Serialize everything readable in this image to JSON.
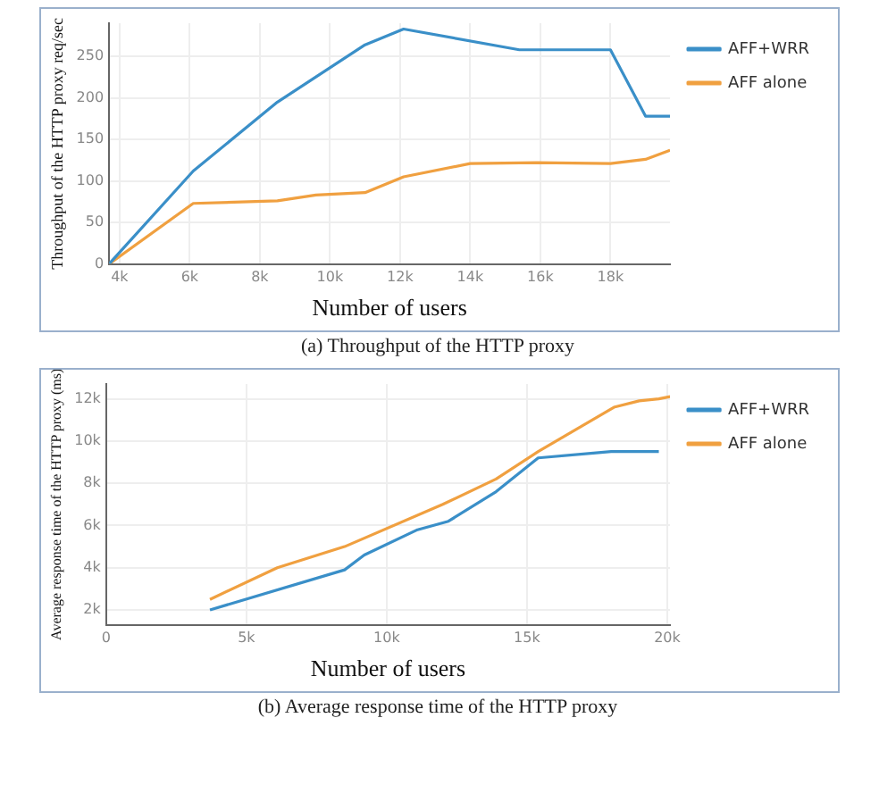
{
  "chart_data": [
    {
      "type": "line",
      "title": "(a)  Throughput of the HTTP proxy",
      "xlabel": "Number of users",
      "ylabel": "Throughput of the HTTP proxy req/sec",
      "xlim": [
        3700,
        19700
      ],
      "xticks": [
        {
          "value": 4000,
          "label": "4k"
        },
        {
          "value": 6000,
          "label": "6k"
        },
        {
          "value": 8000,
          "label": "8k"
        },
        {
          "value": 10000,
          "label": "10k"
        },
        {
          "value": 12000,
          "label": "12k"
        },
        {
          "value": 14000,
          "label": "14k"
        },
        {
          "value": 16000,
          "label": "16k"
        },
        {
          "value": 18000,
          "label": "18k"
        }
      ],
      "ylim": [
        0,
        290
      ],
      "yticks": [
        0,
        50,
        100,
        150,
        200,
        250
      ],
      "grid": true,
      "legend": "top right",
      "marker": "none",
      "line_style": "solid",
      "series": [
        {
          "name": "AFF+WRR",
          "color": "#3a8fc8",
          "x": [
            3700,
            6100,
            8500,
            11000,
            12100,
            15400,
            18000,
            19000,
            19700
          ],
          "values": [
            0,
            112,
            195,
            264,
            283,
            258,
            258,
            178,
            178
          ]
        },
        {
          "name": "AFF alone",
          "color": "#f0a040",
          "x": [
            3700,
            6100,
            8500,
            9600,
            11000,
            12100,
            14000,
            15900,
            18000,
            19000,
            19700
          ],
          "values": [
            0,
            73,
            76,
            83,
            86,
            105,
            121,
            122,
            121,
            126,
            137
          ]
        }
      ]
    },
    {
      "type": "line",
      "title": "(b) Average response time of the HTTP proxy",
      "xlabel": "Number of users",
      "ylabel": "Average response time of the HTTP proxy (ms)",
      "xlim": [
        0,
        20100
      ],
      "xticks": [
        0,
        {
          "value": 5000,
          "label": "5k"
        },
        {
          "value": 10000,
          "label": "10k"
        },
        {
          "value": 15000,
          "label": "15k"
        },
        {
          "value": 20000,
          "label": "20k"
        }
      ],
      "ylim": [
        1300,
        12700
      ],
      "yticks": [
        {
          "value": 2000,
          "label": "2k"
        },
        {
          "value": 4000,
          "label": "4k"
        },
        {
          "value": 6000,
          "label": "6k"
        },
        {
          "value": 8000,
          "label": "8k"
        },
        {
          "value": 10000,
          "label": "10k"
        },
        {
          "value": 12000,
          "label": "12k"
        }
      ],
      "grid": true,
      "legend": "top right",
      "marker": "none",
      "line_style": "solid",
      "series": [
        {
          "name": "AFF+WRR",
          "color": "#3a8fc8",
          "x": [
            3700,
            8500,
            9200,
            11100,
            12200,
            13900,
            15400,
            18000,
            19700
          ],
          "values": [
            2000,
            3900,
            4600,
            5800,
            6200,
            7600,
            9200,
            9500,
            9500
          ]
        },
        {
          "name": "AFF alone",
          "color": "#f0a040",
          "x": [
            3700,
            6100,
            8500,
            12000,
            13900,
            15400,
            18100,
            19000,
            19700,
            20100
          ],
          "values": [
            2500,
            4000,
            5000,
            7000,
            8200,
            9500,
            11600,
            11900,
            12000,
            12100
          ]
        }
      ]
    }
  ]
}
